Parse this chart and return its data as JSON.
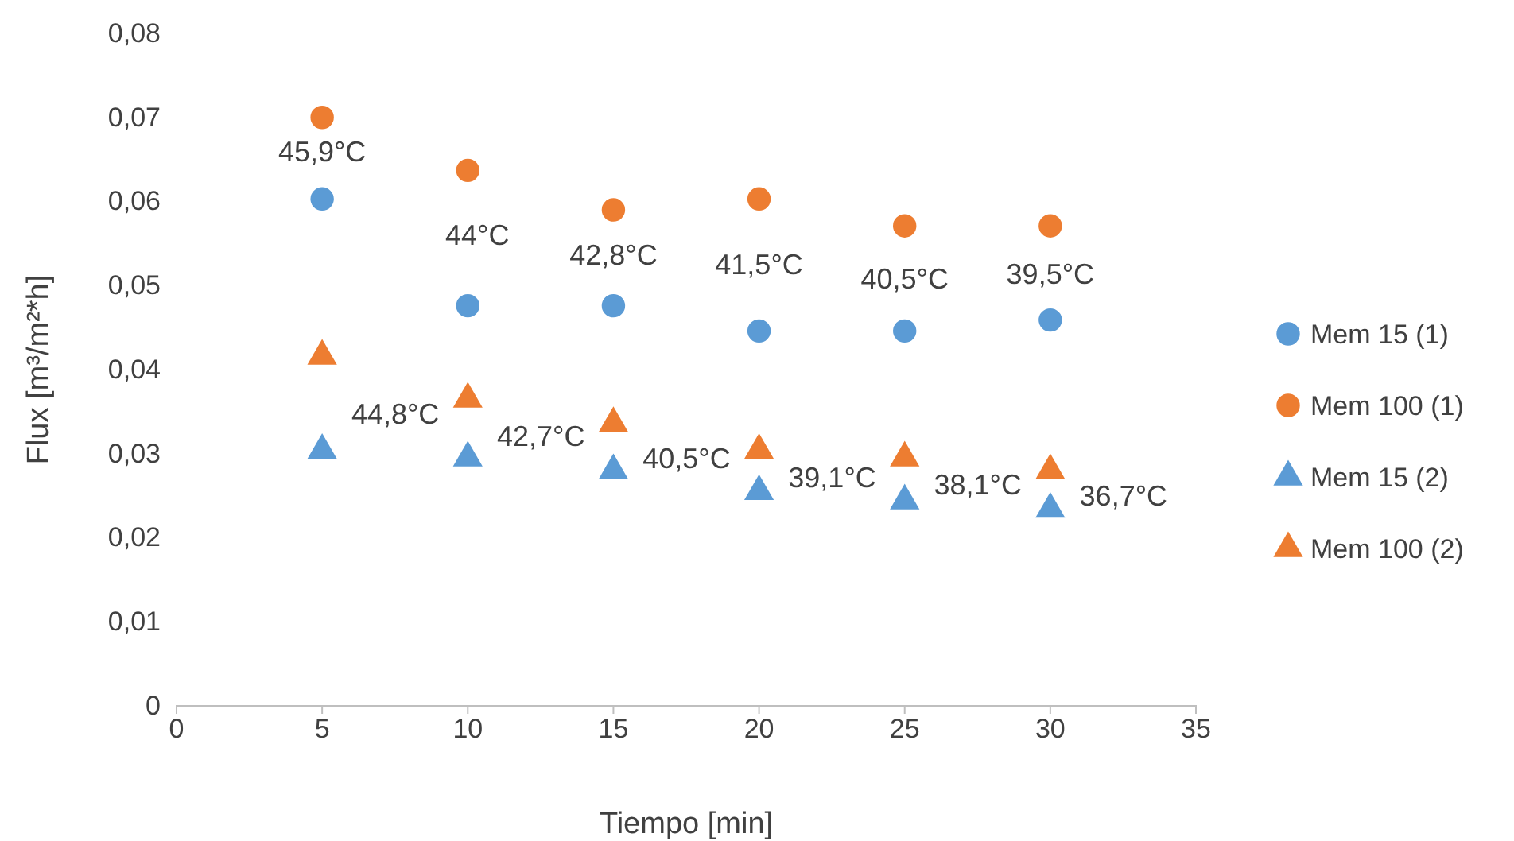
{
  "chart_data": {
    "type": "scatter",
    "xlabel": "Tiempo [min]",
    "ylabel": "Flux [m³/m²*h]",
    "x": [
      5,
      10,
      15,
      20,
      25,
      30
    ],
    "series": [
      {
        "name": "Mem 15 (1)",
        "color": "#5b9bd5",
        "marker": "circle",
        "values": [
          0.0603,
          0.0476,
          0.0476,
          0.0446,
          0.0446,
          0.0459
        ]
      },
      {
        "name": "Mem 100 (1)",
        "color": "#ed7d31",
        "marker": "circle",
        "values": [
          0.07,
          0.0637,
          0.059,
          0.0603,
          0.0571,
          0.0571
        ]
      },
      {
        "name": "Mem 15 (2)",
        "color": "#5b9bd5",
        "marker": "triangle",
        "values": [
          0.0304,
          0.0295,
          0.028,
          0.0255,
          0.0244,
          0.0234
        ]
      },
      {
        "name": "Mem 100 (2)",
        "color": "#ed7d31",
        "marker": "triangle",
        "values": [
          0.0416,
          0.0365,
          0.0336,
          0.0304,
          0.0295,
          0.028
        ]
      }
    ],
    "xlim": [
      0,
      35
    ],
    "xticks": [
      0,
      5,
      10,
      15,
      20,
      25,
      30,
      35
    ],
    "ylim": [
      0,
      0.08
    ],
    "yticks": [
      {
        "value": 0,
        "label": "0"
      },
      {
        "value": 0.01,
        "label": "0,01"
      },
      {
        "value": 0.02,
        "label": "0,02"
      },
      {
        "value": 0.03,
        "label": "0,03"
      },
      {
        "value": 0.04,
        "label": "0,04"
      },
      {
        "value": 0.05,
        "label": "0,05"
      },
      {
        "value": 0.06,
        "label": "0,06"
      },
      {
        "value": 0.07,
        "label": "0,07"
      },
      {
        "value": 0.08,
        "label": "0,08"
      }
    ],
    "grid": false,
    "legend": "right",
    "annotations": [
      "45,9°C",
      "44°C",
      "42,8°C",
      "41,5°C",
      "40,5°C",
      "39,5°C",
      "44,8°C",
      "42,7°C",
      "40,5°C",
      "39,1°C",
      "38,1°C",
      "36,7°C"
    ]
  }
}
